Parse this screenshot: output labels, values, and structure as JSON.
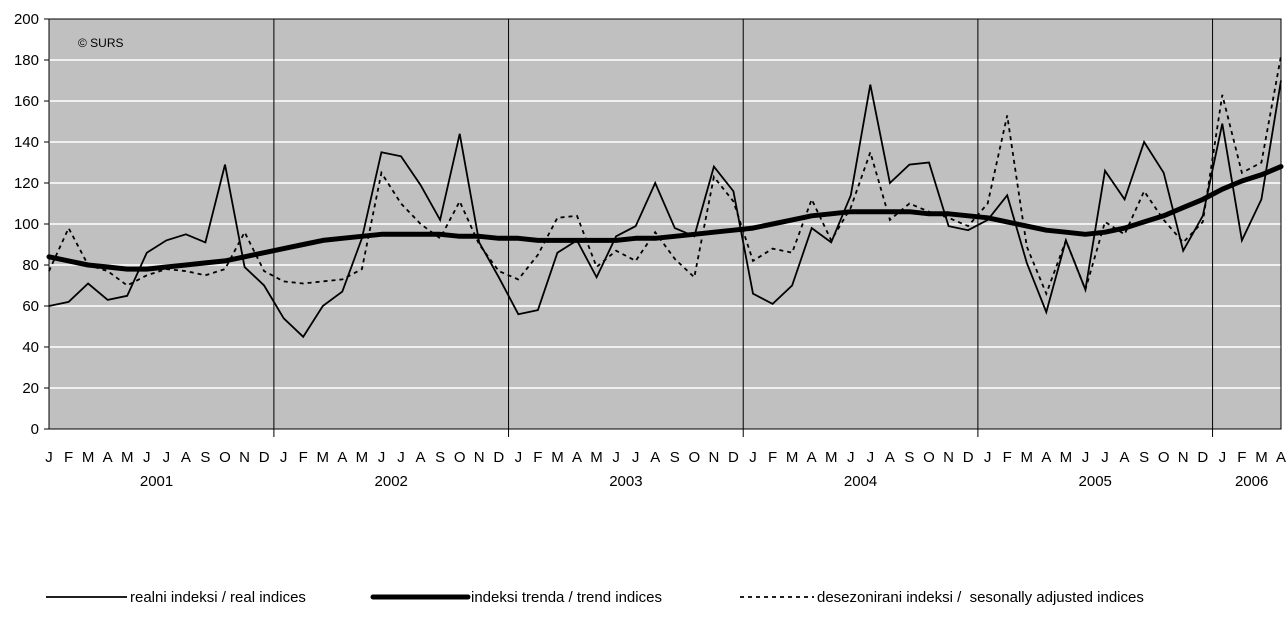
{
  "chart_data": {
    "type": "line",
    "copyright": "© SURS",
    "ylim": [
      0,
      200
    ],
    "yticks": [
      0,
      20,
      40,
      60,
      80,
      100,
      120,
      140,
      160,
      180,
      200
    ],
    "grid": true,
    "month_labels": [
      "J",
      "F",
      "M",
      "A",
      "M",
      "J",
      "J",
      "A",
      "S",
      "O",
      "N",
      "D",
      "J",
      "F",
      "M",
      "A",
      "M",
      "J",
      "J",
      "A",
      "S",
      "O",
      "N",
      "D",
      "J",
      "F",
      "M",
      "A",
      "M",
      "J",
      "J",
      "A",
      "S",
      "O",
      "N",
      "D",
      "J",
      "F",
      "M",
      "A",
      "M",
      "J",
      "J",
      "A",
      "S",
      "O",
      "N",
      "D",
      "J",
      "F",
      "M",
      "A",
      "M",
      "J",
      "J",
      "A",
      "S",
      "O",
      "N",
      "D",
      "J",
      "F",
      "M",
      "A"
    ],
    "years": [
      {
        "label": "2001",
        "start": 0,
        "end": 11
      },
      {
        "label": "2002",
        "start": 12,
        "end": 23
      },
      {
        "label": "2003",
        "start": 24,
        "end": 35
      },
      {
        "label": "2004",
        "start": 36,
        "end": 47
      },
      {
        "label": "2005",
        "start": 48,
        "end": 59
      },
      {
        "label": "2006",
        "start": 60,
        "end": 63
      }
    ],
    "x": [
      "2001-01",
      "2001-02",
      "2001-03",
      "2001-04",
      "2001-05",
      "2001-06",
      "2001-07",
      "2001-08",
      "2001-09",
      "2001-10",
      "2001-11",
      "2001-12",
      "2002-01",
      "2002-02",
      "2002-03",
      "2002-04",
      "2002-05",
      "2002-06",
      "2002-07",
      "2002-08",
      "2002-09",
      "2002-10",
      "2002-11",
      "2002-12",
      "2003-01",
      "2003-02",
      "2003-03",
      "2003-04",
      "2003-05",
      "2003-06",
      "2003-07",
      "2003-08",
      "2003-09",
      "2003-10",
      "2003-11",
      "2003-12",
      "2004-01",
      "2004-02",
      "2004-03",
      "2004-04",
      "2004-05",
      "2004-06",
      "2004-07",
      "2004-08",
      "2004-09",
      "2004-10",
      "2004-11",
      "2004-12",
      "2005-01",
      "2005-02",
      "2005-03",
      "2005-04",
      "2005-05",
      "2005-06",
      "2005-07",
      "2005-08",
      "2005-09",
      "2005-10",
      "2005-11",
      "2005-12",
      "2006-01",
      "2006-02",
      "2006-03",
      "2006-04"
    ],
    "series": [
      {
        "name": "realni indeksi / real indices",
        "style": "thin",
        "values": [
          60,
          62,
          71,
          63,
          65,
          86,
          92,
          95,
          91,
          129,
          79,
          70,
          54,
          45,
          60,
          67,
          93,
          135,
          133,
          119,
          102,
          144,
          91,
          74,
          56,
          58,
          86,
          92,
          74,
          94,
          99,
          120,
          98,
          94,
          128,
          116,
          66,
          61,
          70,
          98,
          91,
          114,
          168,
          120,
          129,
          130,
          99,
          97,
          102,
          114,
          81,
          57,
          92,
          68,
          126,
          112,
          140,
          125,
          87,
          104,
          149,
          92,
          112,
          170
        ]
      },
      {
        "name": "indeksi trenda / trend indices",
        "style": "thick",
        "values": [
          84,
          82,
          80,
          79,
          78,
          78,
          79,
          80,
          81,
          82,
          84,
          86,
          88,
          90,
          92,
          93,
          94,
          95,
          95,
          95,
          95,
          94,
          94,
          93,
          93,
          92,
          92,
          92,
          92,
          92,
          93,
          93,
          94,
          95,
          96,
          97,
          98,
          100,
          102,
          104,
          105,
          106,
          106,
          106,
          106,
          105,
          105,
          104,
          103,
          101,
          99,
          97,
          96,
          95,
          96,
          98,
          101,
          104,
          108,
          112,
          117,
          121,
          124,
          128
        ]
      },
      {
        "name": "desezonirani indeksi /  sesonally adjusted indices",
        "style": "dashed",
        "values": [
          77,
          98,
          80,
          77,
          70,
          75,
          78,
          77,
          75,
          78,
          96,
          77,
          72,
          71,
          72,
          73,
          78,
          125,
          110,
          100,
          93,
          111,
          90,
          77,
          73,
          85,
          103,
          104,
          79,
          87,
          82,
          96,
          83,
          74,
          123,
          111,
          82,
          88,
          86,
          112,
          92,
          108,
          135,
          102,
          110,
          106,
          103,
          99,
          110,
          153,
          89,
          66,
          92,
          68,
          101,
          95,
          116,
          102,
          91,
          101,
          163,
          125,
          130,
          182
        ]
      }
    ]
  }
}
